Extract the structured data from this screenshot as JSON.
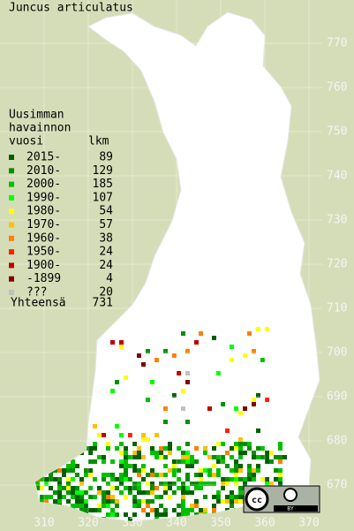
{
  "title": "Juncus articulatus",
  "legend": {
    "header": [
      "Uusimman",
      "havainnon",
      "vuosi"
    ],
    "count_header": "lkm",
    "items": [
      {
        "label": "2015-",
        "count": 89,
        "color": "#006000"
      },
      {
        "label": "2010-",
        "count": 129,
        "color": "#009000"
      },
      {
        "label": "2000-",
        "count": 185,
        "color": "#00c000"
      },
      {
        "label": "1990-",
        "count": 107,
        "color": "#00ff00"
      },
      {
        "label": "1980-",
        "count": 54,
        "color": "#ffff00"
      },
      {
        "label": "1970-",
        "count": 57,
        "color": "#ffc000"
      },
      {
        "label": "1960-",
        "count": 38,
        "color": "#ff8000"
      },
      {
        "label": "1950-",
        "count": 24,
        "color": "#ff2000"
      },
      {
        "label": "1900-",
        "count": 24,
        "color": "#c00000"
      },
      {
        "label": "-1899",
        "count": 4,
        "color": "#800000"
      },
      {
        "label": "???",
        "count": 20,
        "color": "#c0c0c0"
      }
    ],
    "total_label": "Yhteensä",
    "total": 731
  },
  "axes": {
    "x_ticks": [
      310,
      320,
      330,
      340,
      350,
      360,
      370
    ],
    "y_ticks": [
      670,
      680,
      690,
      700,
      710,
      720,
      730,
      740,
      750,
      760,
      770
    ]
  },
  "license": {
    "cc": "cc",
    "by": "BY"
  }
}
